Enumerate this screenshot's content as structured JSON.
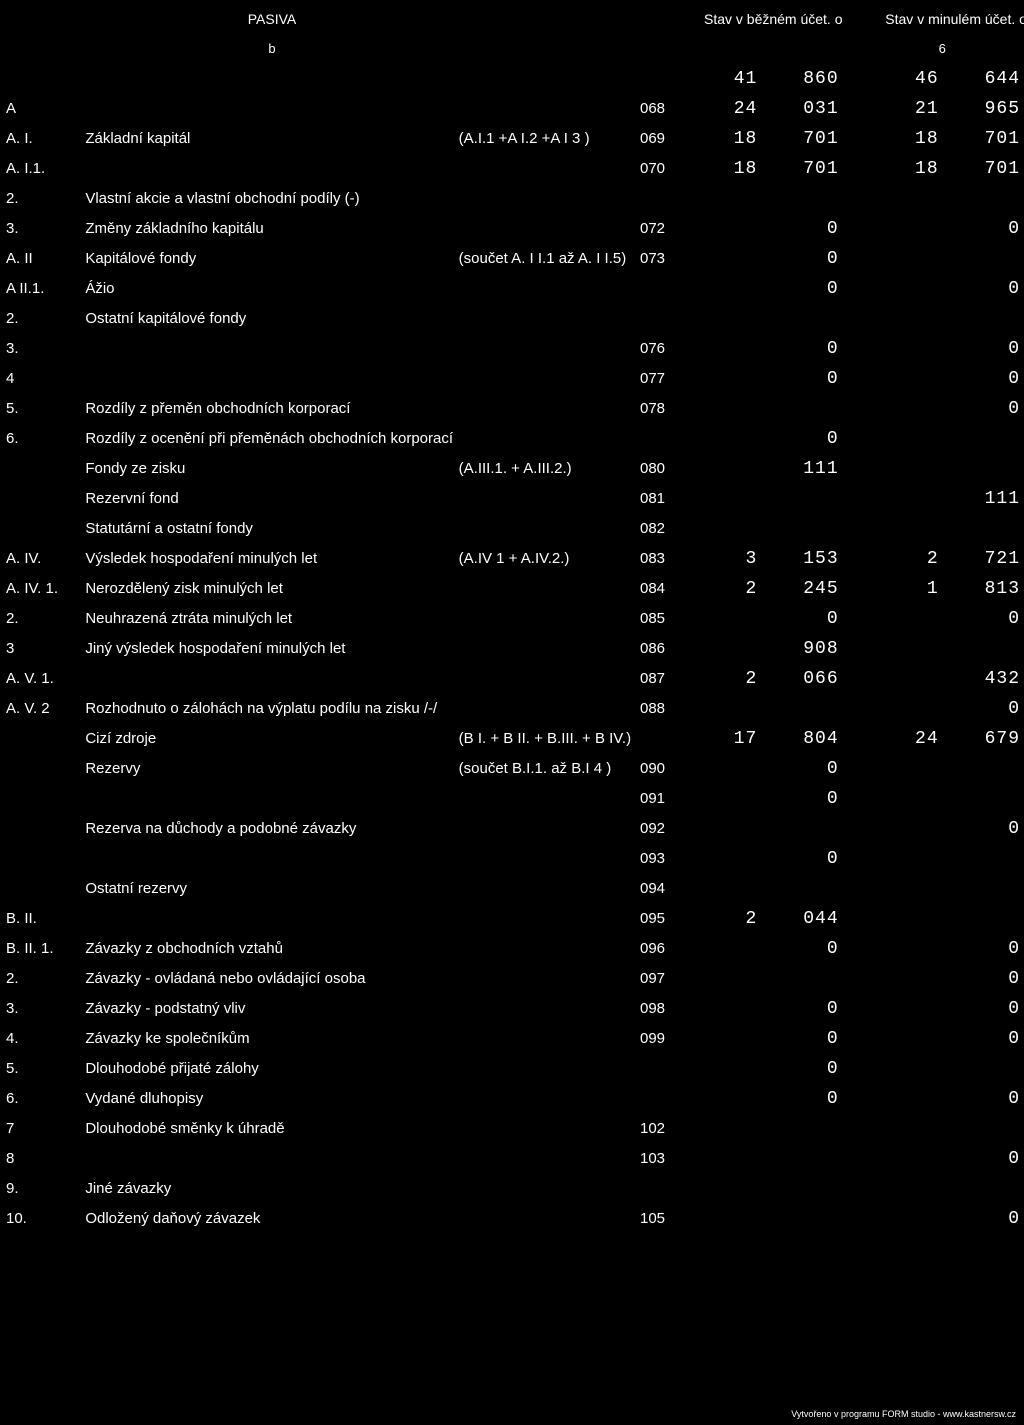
{
  "header": {
    "col_desc": "PASIVA",
    "col_current": "Stav v běžném účet. období",
    "col_previous": "Stav v minulém účet. období",
    "sub_b": "b",
    "sub_6": "6"
  },
  "rows": [
    {
      "code": "",
      "desc": "",
      "note": "",
      "rownum": "",
      "th": "41",
      "v1": "860",
      "th2": "46",
      "v2": "644"
    },
    {
      "code": "A",
      "desc": "",
      "note": "",
      "rownum": "068",
      "th": "24",
      "v1": "031",
      "th2": "21",
      "v2": "965"
    },
    {
      "code": "A. I.",
      "desc": "Základní kapitál",
      "note": "(A.I.1 +A I.2 +A I 3 )",
      "rownum": "069",
      "th": "18",
      "v1": "701",
      "th2": "18",
      "v2": "701"
    },
    {
      "code": "A. I.1.",
      "desc": "",
      "note": "",
      "rownum": "070",
      "th": "18",
      "v1": "701",
      "th2": "18",
      "v2": "701"
    },
    {
      "code": "2.",
      "indent": 1,
      "desc": "Vlastní akcie a vlastní obchodní podíly (-)",
      "note": "",
      "rownum": "",
      "th": "",
      "v1": "",
      "th2": "",
      "v2": ""
    },
    {
      "code": "3.",
      "indent": 1,
      "desc": "Změny základního kapitálu",
      "note": "",
      "rownum": "072",
      "th": "",
      "v1": "0",
      "th2": "",
      "v2": "0"
    },
    {
      "code": "A. II",
      "desc": "Kapitálové fondy",
      "note": "(součet A. I I.1 až A. I I.5)",
      "rownum": "073",
      "th": "",
      "v1": "0",
      "th2": "",
      "v2": ""
    },
    {
      "code": "A  II.1.",
      "desc": "Ážio",
      "note": "",
      "rownum": "",
      "th": "",
      "v1": "0",
      "th2": "",
      "v2": "0"
    },
    {
      "code": "2.",
      "indent": 1,
      "desc": "Ostatní kapitálové fondy",
      "note": "",
      "rownum": "",
      "th": "",
      "v1": "",
      "th2": "",
      "v2": ""
    },
    {
      "code": "3.",
      "indent": 1,
      "desc": "",
      "note": "",
      "rownum": "076",
      "th": "",
      "v1": "0",
      "th2": "",
      "v2": "0"
    },
    {
      "code": "4",
      "indent": 1,
      "desc": "",
      "note": "",
      "rownum": "077",
      "th": "",
      "v1": "0",
      "th2": "",
      "v2": "0"
    },
    {
      "code": "5.",
      "indent": 1,
      "desc": "Rozdíly z přeměn obchodních korporací",
      "note": "",
      "rownum": "078",
      "th": "",
      "v1": "",
      "th2": "",
      "v2": "0"
    },
    {
      "code": "6.",
      "indent": 1,
      "desc": "Rozdíly z ocenění při přeměnách obchodních korporací",
      "note": "",
      "rownum": "",
      "th": "",
      "v1": "0",
      "th2": "",
      "v2": ""
    },
    {
      "code": "",
      "desc": "Fondy ze zisku",
      "note": "(A.III.1. + A.III.2.)",
      "rownum": "080",
      "th": "",
      "v1": "111",
      "th2": "",
      "v2": ""
    },
    {
      "code": "",
      "desc": "Rezervní fond",
      "note": "",
      "rownum": "081",
      "th": "",
      "v1": "",
      "th2": "",
      "v2": "111"
    },
    {
      "code": "",
      "desc": "Statutární a ostatní fondy",
      "note": "",
      "rownum": "082",
      "th": "",
      "v1": "",
      "th2": "",
      "v2": ""
    },
    {
      "code": "A. IV.",
      "desc": "Výsledek hospodaření minulých let",
      "note": "(A.IV 1  + A.IV.2.)",
      "rownum": "083",
      "th": "3",
      "v1": "153",
      "th2": "2",
      "v2": "721"
    },
    {
      "code": "A. IV. 1.",
      "desc": "Nerozdělený zisk minulých let",
      "note": "",
      "rownum": "084",
      "th": "2",
      "v1": "245",
      "th2": "1",
      "v2": "813"
    },
    {
      "code": "2.",
      "indent": 1,
      "desc": "Neuhrazená ztráta minulých let",
      "note": "",
      "rownum": "085",
      "th": "",
      "v1": "0",
      "th2": "",
      "v2": "0"
    },
    {
      "code": "3",
      "indent": 1,
      "desc": "Jiný výsledek hospodaření minulých let",
      "note": "",
      "rownum": "086",
      "th": "",
      "v1": "908",
      "th2": "",
      "v2": ""
    },
    {
      "code": "A. V. 1.",
      "desc": "",
      "note": "",
      "rownum": "087",
      "th": "2",
      "v1": "066",
      "th2": "",
      "v2": "432"
    },
    {
      "code": "A. V. 2",
      "desc": "Rozhodnuto o zálohách na výplatu podílu na zisku /-/",
      "note": "",
      "rownum": "088",
      "th": "",
      "v1": "",
      "th2": "",
      "v2": "0"
    },
    {
      "code": "",
      "desc": "Cizí zdroje",
      "note": "(B I. + B II. + B.III. + B IV.)",
      "rownum": "",
      "th": "17",
      "v1": "804",
      "th2": "24",
      "v2": "679"
    },
    {
      "code": "",
      "desc": "Rezervy",
      "note": "(součet B.I.1. až B.I 4 )",
      "rownum": "090",
      "th": "",
      "v1": "0",
      "th2": "",
      "v2": ""
    },
    {
      "code": "",
      "desc": "",
      "note": "",
      "rownum": "091",
      "th": "",
      "v1": "0",
      "th2": "",
      "v2": ""
    },
    {
      "code": "",
      "desc": "Rezerva na důchody a podobné závazky",
      "note": "",
      "rownum": "092",
      "th": "",
      "v1": "",
      "th2": "",
      "v2": "0"
    },
    {
      "code": "",
      "desc": "",
      "note": "",
      "rownum": "093",
      "th": "",
      "v1": "0",
      "th2": "",
      "v2": ""
    },
    {
      "code": "",
      "desc": "Ostatní rezervy",
      "note": "",
      "rownum": "094",
      "th": "",
      "v1": "",
      "th2": "",
      "v2": ""
    },
    {
      "code": "B. II.",
      "desc": "",
      "note": "",
      "rownum": "095",
      "th": "2",
      "v1": "044",
      "th2": "",
      "v2": ""
    },
    {
      "code": "B. II. 1.",
      "desc": "Závazky z obchodních vztahů",
      "note": "",
      "rownum": "096",
      "th": "",
      "v1": "0",
      "th2": "",
      "v2": "0"
    },
    {
      "code": "2.",
      "indent": 1,
      "desc": "Závazky - ovládaná nebo ovládající osoba",
      "note": "",
      "rownum": "097",
      "th": "",
      "v1": "",
      "th2": "",
      "v2": "0"
    },
    {
      "code": "3.",
      "indent": 1,
      "desc": "Závazky - podstatný vliv",
      "note": "",
      "rownum": "098",
      "th": "",
      "v1": "0",
      "th2": "",
      "v2": "0"
    },
    {
      "code": "4.",
      "indent": 1,
      "desc": "Závazky ke společníkům",
      "note": "",
      "rownum": "099",
      "th": "",
      "v1": "0",
      "th2": "",
      "v2": "0"
    },
    {
      "code": "5.",
      "indent": 1,
      "desc": "Dlouhodobé přijaté zálohy",
      "note": "",
      "rownum": "",
      "th": "",
      "v1": "0",
      "th2": "",
      "v2": ""
    },
    {
      "code": "6.",
      "indent": 1,
      "desc": "Vydané dluhopisy",
      "note": "",
      "rownum": "",
      "th": "",
      "v1": "0",
      "th2": "",
      "v2": "0"
    },
    {
      "code": "7",
      "indent": 1,
      "desc": "Dlouhodobé směnky k úhradě",
      "note": "",
      "rownum": "102",
      "th": "",
      "v1": "",
      "th2": "",
      "v2": ""
    },
    {
      "code": "8",
      "indent": 1,
      "desc": "",
      "note": "",
      "rownum": "103",
      "th": "",
      "v1": "",
      "th2": "",
      "v2": "0"
    },
    {
      "code": "9.",
      "indent": 1,
      "desc": "Jiné závazky",
      "note": "",
      "rownum": "",
      "th": "",
      "v1": "",
      "th2": "",
      "v2": ""
    },
    {
      "code": "10.",
      "indent": 1,
      "desc": "Odložený daňový závazek",
      "note": "",
      "rownum": "105",
      "th": "",
      "v1": "",
      "th2": "",
      "v2": "0"
    }
  ],
  "footer": "Vytvořeno v programu FORM studio - www.kastnersw.cz"
}
